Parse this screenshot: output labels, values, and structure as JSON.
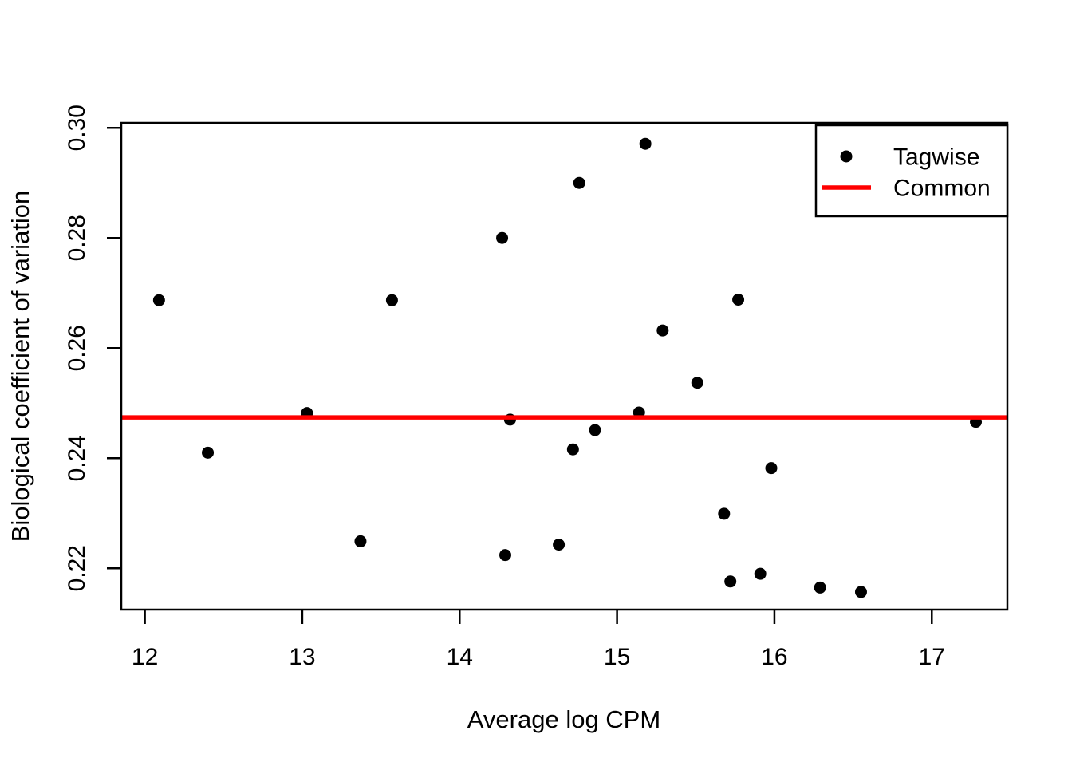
{
  "figure": {
    "kind": "R plotBCV scatter figure",
    "background": "#ffffff"
  },
  "colors": {
    "tagwise_points": "#000000",
    "common_line": "#ff0000",
    "axis": "#000000",
    "background": "#ffffff"
  },
  "chart_data": {
    "type": "scatter",
    "title": "",
    "xlabel": "Average log CPM",
    "ylabel": "Biological coefficient of variation",
    "xlim": [
      11.85,
      17.48
    ],
    "ylim": [
      0.2125,
      0.3009
    ],
    "grid": false,
    "x_ticks": [
      12,
      13,
      14,
      15,
      16,
      17
    ],
    "x_tick_labels": [
      "12",
      "13",
      "14",
      "15",
      "16",
      "17"
    ],
    "y_ticks": [
      0.22,
      0.24,
      0.26,
      0.28,
      0.3
    ],
    "y_tick_labels": [
      "0.22",
      "0.24",
      "0.26",
      "0.28",
      "0.30"
    ],
    "legend_position": "top-right",
    "series": [
      {
        "name": "Tagwise",
        "type": "scatter",
        "marker": "filled-circle",
        "color": "#000000",
        "points": [
          [
            12.09,
            0.2687
          ],
          [
            12.4,
            0.241
          ],
          [
            13.03,
            0.2482
          ],
          [
            13.37,
            0.2249
          ],
          [
            13.57,
            0.2687
          ],
          [
            14.27,
            0.28
          ],
          [
            14.29,
            0.2224
          ],
          [
            14.32,
            0.247
          ],
          [
            14.63,
            0.2243
          ],
          [
            14.72,
            0.2416
          ],
          [
            14.76,
            0.29
          ],
          [
            14.86,
            0.2451
          ],
          [
            15.14,
            0.2483
          ],
          [
            15.18,
            0.2971
          ],
          [
            15.29,
            0.2632
          ],
          [
            15.51,
            0.2537
          ],
          [
            15.68,
            0.2299
          ],
          [
            15.72,
            0.2176
          ],
          [
            15.77,
            0.2688
          ],
          [
            15.91,
            0.219
          ],
          [
            15.98,
            0.2382
          ],
          [
            16.29,
            0.2165
          ],
          [
            16.55,
            0.2157
          ],
          [
            17.28,
            0.2466
          ]
        ]
      },
      {
        "name": "Common",
        "type": "hline",
        "color": "#ff0000",
        "y": 0.2474
      }
    ]
  },
  "legend": {
    "items": [
      {
        "label": "Tagwise",
        "symbol": "point",
        "color": "#000000"
      },
      {
        "label": "Common",
        "symbol": "line",
        "color": "#ff0000"
      }
    ]
  }
}
